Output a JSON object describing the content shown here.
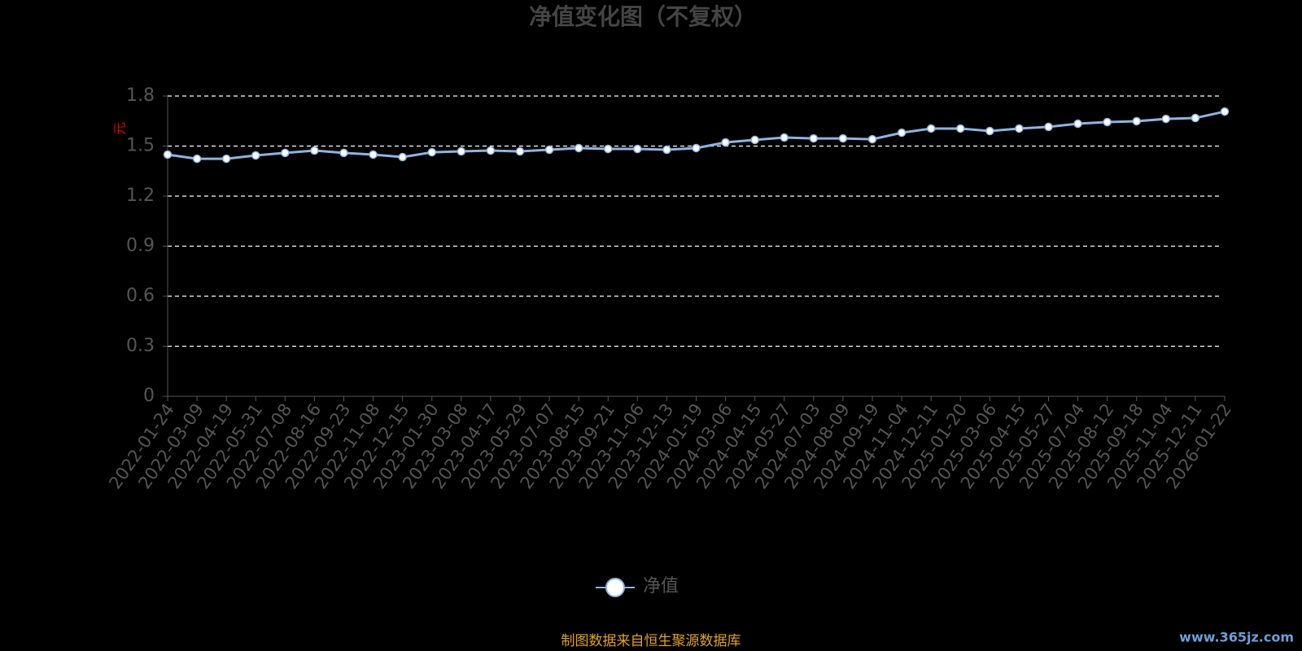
{
  "chart_data": {
    "type": "line",
    "title": "净值变化图（不复权）",
    "y_label": "元",
    "source": "制图数据来自恒生聚源数据库",
    "watermark": "www.365jz.com",
    "categories": [
      "2022-01-24",
      "2022-03-09",
      "2022-04-19",
      "2022-05-31",
      "2022-07-08",
      "2022-08-16",
      "2022-09-23",
      "2022-11-08",
      "2022-12-15",
      "2023-01-30",
      "2023-03-08",
      "2023-04-17",
      "2023-05-29",
      "2023-07-07",
      "2023-08-15",
      "2023-09-21",
      "2023-11-06",
      "2023-12-13",
      "2024-01-19",
      "2024-03-06",
      "2024-04-15",
      "2024-05-27",
      "2024-07-03",
      "2024-08-09",
      "2024-09-19",
      "2024-11-04",
      "2024-12-11",
      "2025-01-20",
      "2025-03-06",
      "2025-04-15",
      "2025-05-27",
      "2025-07-04",
      "2025-08-12",
      "2025-09-18",
      "2025-11-04",
      "2025-12-11",
      "2026-01-22"
    ],
    "series": [
      {
        "name": "净值",
        "color": "#8fb3e0",
        "values": [
          1.449,
          1.424,
          1.424,
          1.444,
          1.459,
          1.473,
          1.459,
          1.449,
          1.434,
          1.463,
          1.468,
          1.473,
          1.468,
          1.478,
          1.488,
          1.483,
          1.483,
          1.478,
          1.488,
          1.522,
          1.537,
          1.551,
          1.546,
          1.546,
          1.541,
          1.58,
          1.605,
          1.605,
          1.59,
          1.605,
          1.615,
          1.634,
          1.644,
          1.649,
          1.663,
          1.668,
          1.707
        ]
      }
    ],
    "ylim": [
      0,
      1.8
    ],
    "yticks": [
      0,
      0.3,
      0.6,
      0.9,
      1.2,
      1.5,
      1.8
    ],
    "grid": true
  }
}
